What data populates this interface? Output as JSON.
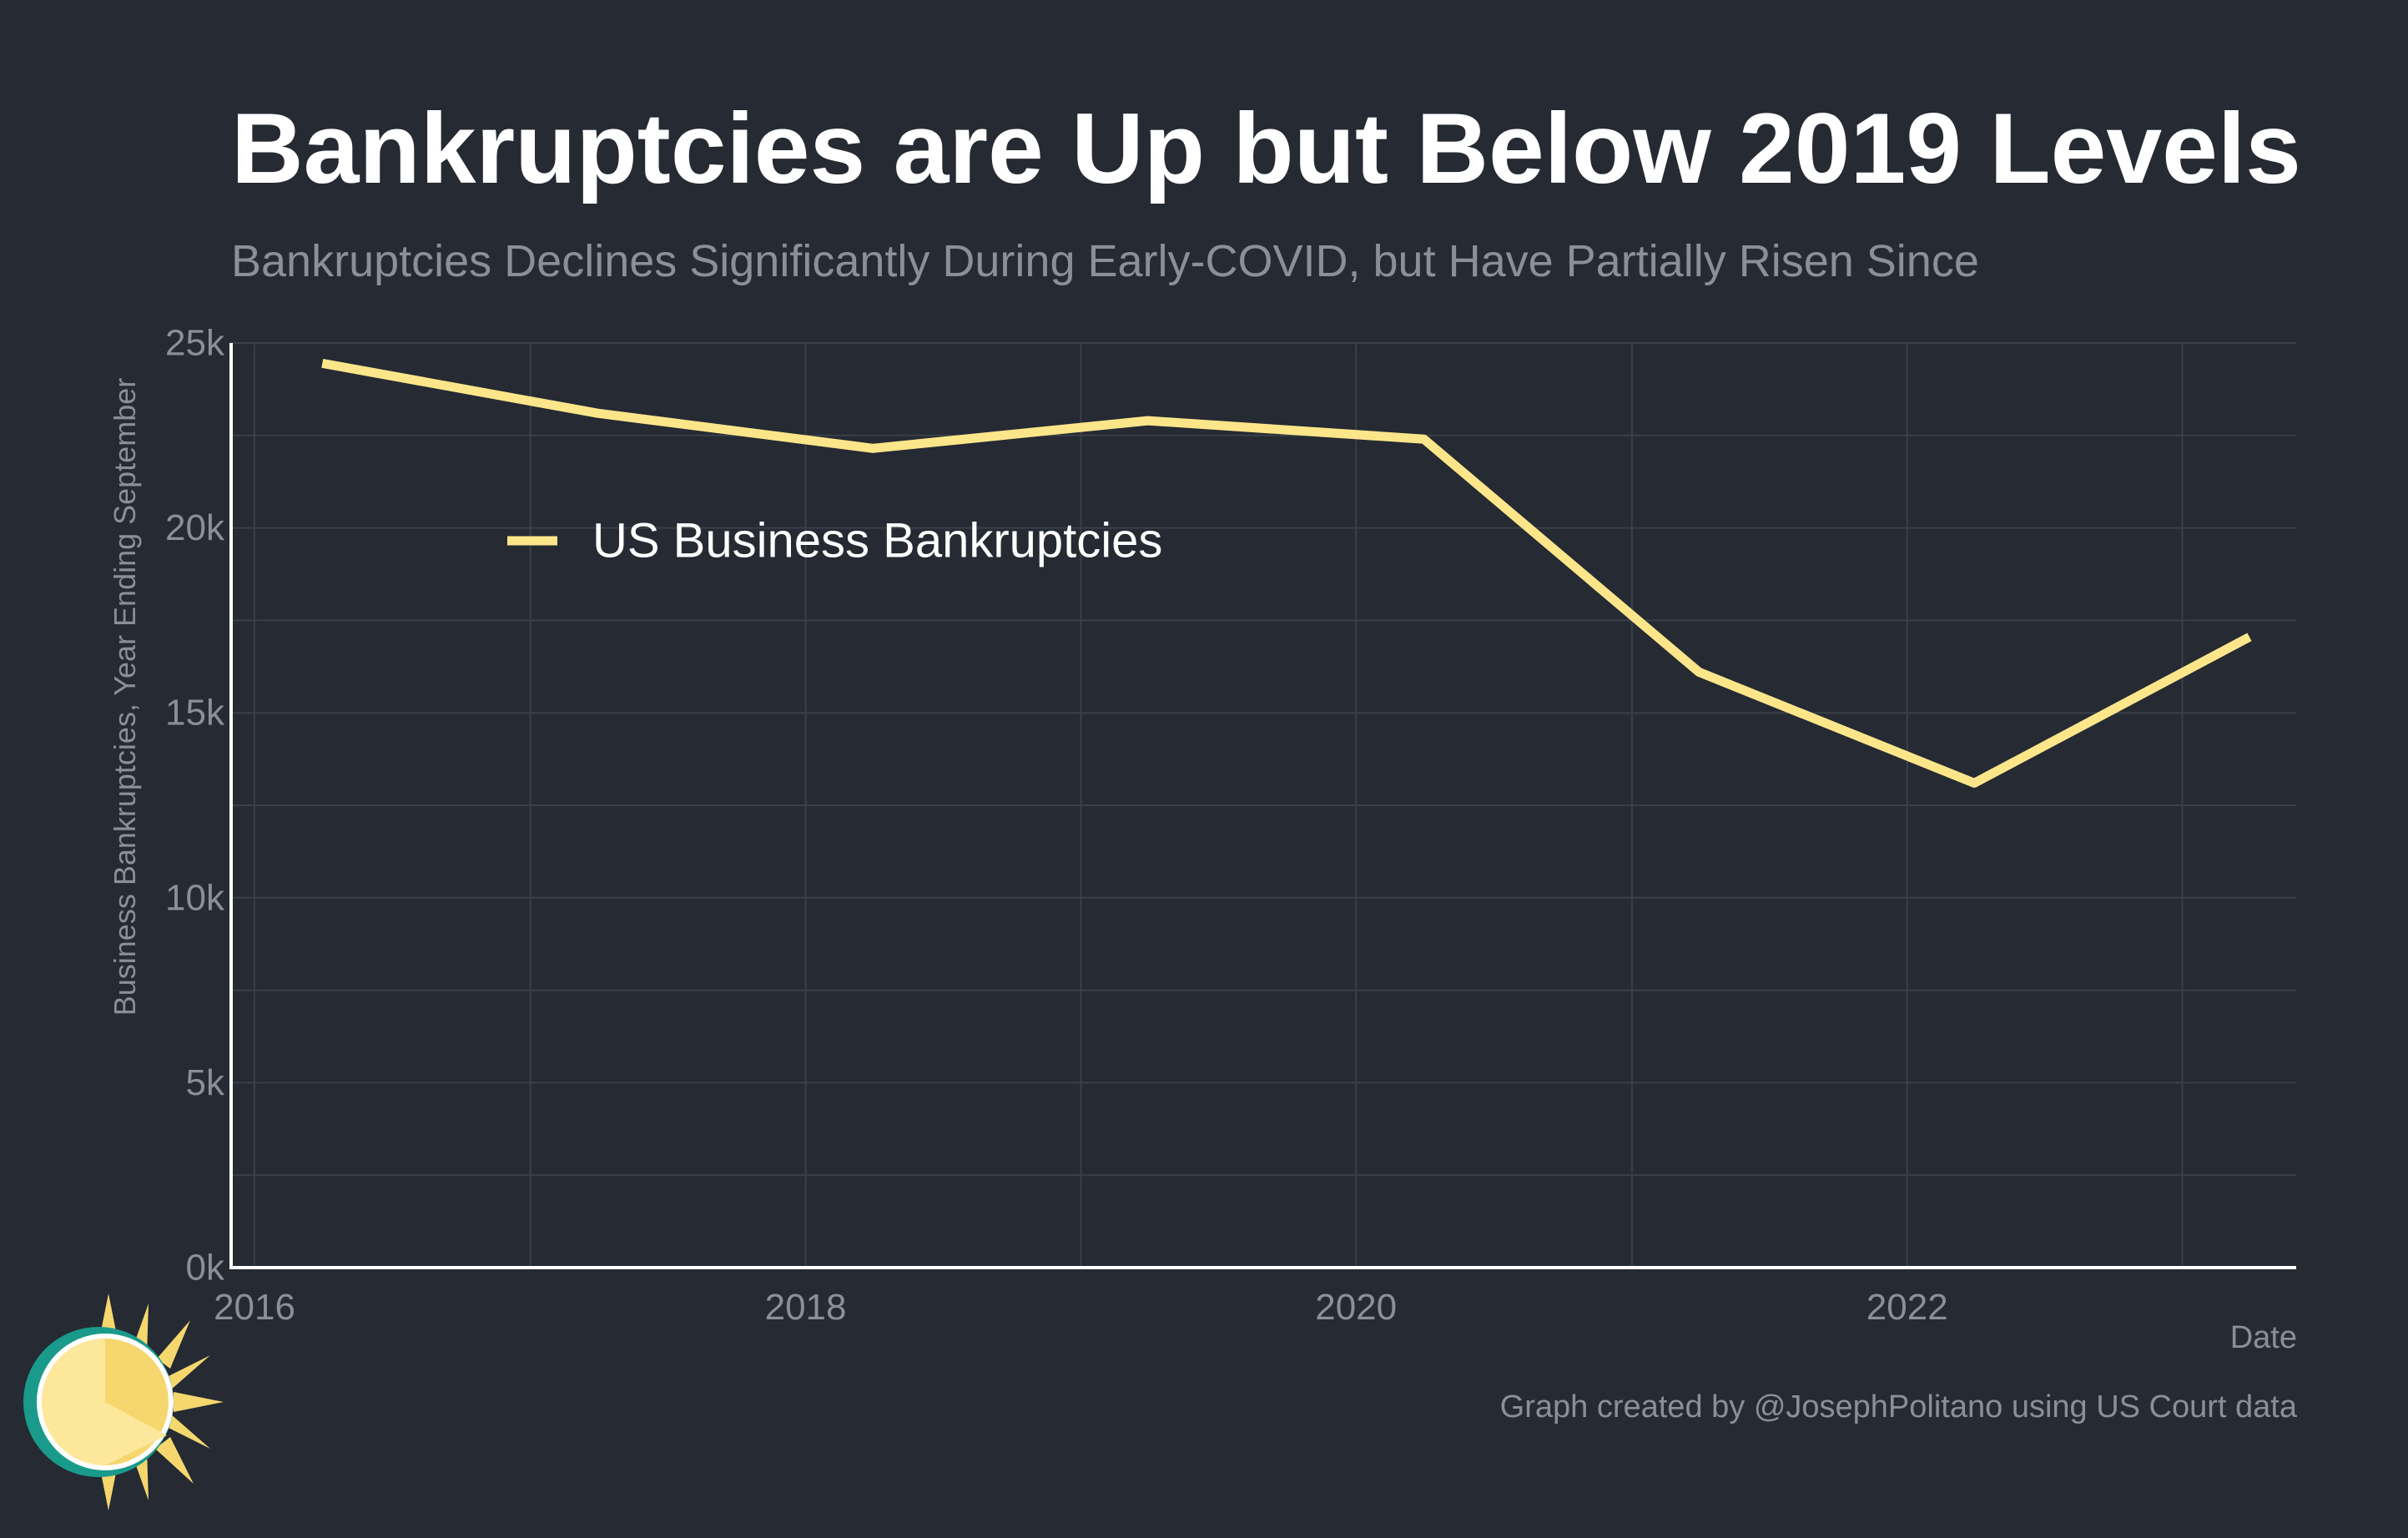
{
  "title": "Bankruptcies are Up but Below 2019 Levels",
  "subtitle": "Bankruptcies Declines Significantly During Early-COVID, but Have Partially Risen Since",
  "caption": "Graph created by @JosephPolitano using US Court data",
  "colors": {
    "background": "#252a33",
    "line": "#fde68a",
    "grid": "#3a3f48",
    "axis": "#ffffff",
    "muted_text": "#8a8f98",
    "legend_text": "#ffffff"
  },
  "logo_icon": "sun-icon",
  "chart_data": {
    "type": "line",
    "title": "Bankruptcies are Up but Below 2019 Levels",
    "subtitle": "Bankruptcies Declines Significantly During Early-COVID, but Have Partially Risen Since",
    "xlabel": "Date",
    "ylabel": "Business Bankruptcies, Year Ending September",
    "x_ticks": [
      "2016",
      "2018",
      "2020",
      "2022"
    ],
    "y_ticks": [
      "0k",
      "5k",
      "10k",
      "15k",
      "20k",
      "25k"
    ],
    "ylim": [
      0,
      25000
    ],
    "xlim": [
      "2015-12-01",
      "2023-06-01"
    ],
    "grid": true,
    "legend_position": "top-left, inside plot",
    "series": [
      {
        "name": "US Business Bankruptcies",
        "x": [
          "2016-03-31",
          "2017-03-31",
          "2018-03-31",
          "2019-03-31",
          "2020-03-31",
          "2021-03-31",
          "2022-03-31",
          "2023-03-31"
        ],
        "values": [
          24450,
          23100,
          22150,
          22900,
          22400,
          16100,
          13100,
          17050
        ]
      }
    ]
  }
}
